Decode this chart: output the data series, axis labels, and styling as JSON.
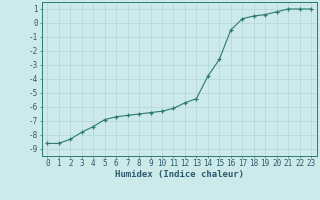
{
  "xlabel": "Humidex (Indice chaleur)",
  "ylabel": "",
  "x_values": [
    0,
    1,
    2,
    3,
    4,
    5,
    6,
    7,
    8,
    9,
    10,
    11,
    12,
    13,
    14,
    15,
    16,
    17,
    18,
    19,
    20,
    21,
    22,
    23
  ],
  "y_values": [
    -8.6,
    -8.6,
    -8.3,
    -7.8,
    -7.4,
    -6.9,
    -6.7,
    -6.6,
    -6.5,
    -6.4,
    -6.3,
    -6.1,
    -5.7,
    -5.4,
    -3.8,
    -2.6,
    -0.5,
    0.3,
    0.5,
    0.6,
    0.8,
    1.0,
    1.0,
    1.0
  ],
  "line_color": "#2d7a6e",
  "marker": "+",
  "bg_color": "#cdeaea",
  "grid_color": "#b8d8d8",
  "xlim": [
    -0.5,
    23.5
  ],
  "ylim": [
    -9.5,
    1.5
  ],
  "yticks": [
    1,
    0,
    -1,
    -2,
    -3,
    -4,
    -5,
    -6,
    -7,
    -8,
    -9
  ],
  "xtick_labels": [
    "0",
    "1",
    "2",
    "3",
    "4",
    "5",
    "6",
    "7",
    "8",
    "9",
    "10",
    "11",
    "12",
    "13",
    "14",
    "15",
    "16",
    "17",
    "18",
    "19",
    "20",
    "21",
    "22",
    "23"
  ],
  "font_color": "#2d5a6e",
  "font_family": "monospace",
  "tick_fontsize": 5.5,
  "xlabel_fontsize": 6.5
}
